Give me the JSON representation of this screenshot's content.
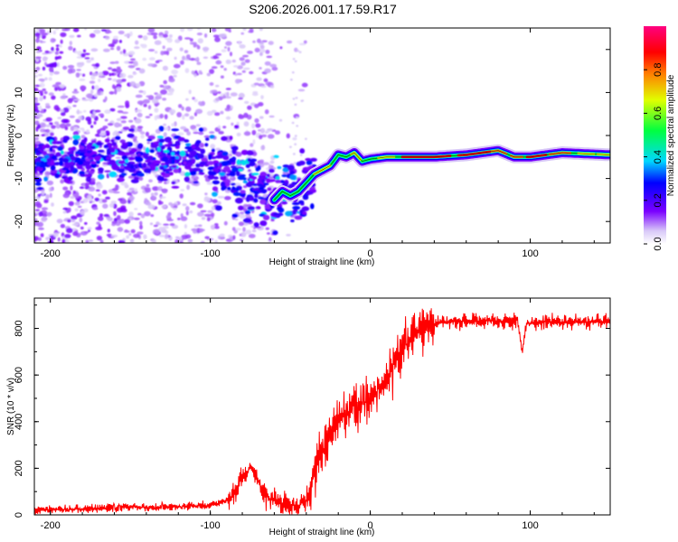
{
  "title": "S206.2026.001.17.59.R17",
  "chart_data": [
    {
      "type": "heatmap",
      "name": "spectrogram",
      "xlabel": "Height of straight line (km)",
      "ylabel": "Frequency (Hz)",
      "xlim": [
        -210,
        150
      ],
      "ylim": [
        -25,
        25
      ],
      "xticks": [
        -200,
        -100,
        0,
        100
      ],
      "yticks": [
        -20,
        -10,
        0,
        10,
        20
      ],
      "colorbar": {
        "label": "Normalized spectral amplitude",
        "range": [
          0,
          1
        ],
        "ticks": [
          0.0,
          0.2,
          0.4,
          0.6,
          0.8
        ],
        "tick_labels": [
          "0.0",
          "0.2",
          "0.4",
          "0.6",
          "0.8"
        ]
      },
      "ridge": {
        "x": [
          -180,
          -160,
          -140,
          -120,
          -100,
          -90,
          -80,
          -70,
          -60,
          -55,
          -50,
          -45,
          -40,
          -35,
          -30,
          -25,
          -20,
          -15,
          -10,
          -5,
          0,
          10,
          20,
          40,
          60,
          80,
          90,
          100,
          120,
          150
        ],
        "y": [
          -5.5,
          -5,
          -5,
          -5.5,
          -5.5,
          -7,
          -10,
          -12,
          -15,
          -13,
          -14,
          -13,
          -11,
          -9,
          -8,
          -7,
          -4.5,
          -5,
          -4,
          -6,
          -5.5,
          -5,
          -5,
          -5,
          -4.5,
          -3.5,
          -5,
          -5,
          -4,
          -4.5
        ]
      }
    },
    {
      "type": "line",
      "name": "snr",
      "xlabel": "Height of straight line (km)",
      "ylabel": "SNR (10 * v/v)",
      "xlim": [
        -210,
        150
      ],
      "ylim": [
        0,
        930
      ],
      "xticks": [
        -200,
        -100,
        0,
        100
      ],
      "yticks": [
        0,
        200,
        400,
        600,
        800
      ],
      "color": "#ff0000",
      "x": [
        -210,
        -180,
        -160,
        -150,
        -140,
        -120,
        -100,
        -90,
        -85,
        -80,
        -75,
        -70,
        -65,
        -60,
        -55,
        -50,
        -45,
        -40,
        -38,
        -35,
        -30,
        -25,
        -20,
        -15,
        -10,
        -5,
        0,
        5,
        10,
        15,
        20,
        25,
        30,
        35,
        40,
        50,
        60,
        80,
        90,
        92,
        95,
        98,
        110,
        130,
        150
      ],
      "y": [
        20,
        25,
        30,
        35,
        30,
        35,
        40,
        60,
        90,
        160,
        200,
        150,
        80,
        60,
        40,
        40,
        40,
        60,
        120,
        200,
        270,
        330,
        420,
        430,
        470,
        480,
        490,
        540,
        580,
        650,
        700,
        760,
        790,
        810,
        820,
        830,
        835,
        830,
        830,
        840,
        700,
        820,
        830,
        825,
        830
      ]
    }
  ]
}
